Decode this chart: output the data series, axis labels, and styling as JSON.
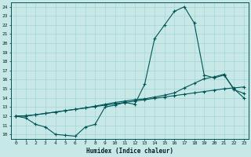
{
  "xlabel": "Humidex (Indice chaleur)",
  "xlim": [
    -0.5,
    23.5
  ],
  "ylim": [
    9.5,
    24.5
  ],
  "xticks": [
    0,
    1,
    2,
    3,
    4,
    5,
    6,
    7,
    8,
    9,
    10,
    11,
    12,
    13,
    14,
    15,
    16,
    17,
    18,
    19,
    20,
    21,
    22,
    23
  ],
  "yticks": [
    10,
    11,
    12,
    13,
    14,
    15,
    16,
    17,
    18,
    19,
    20,
    21,
    22,
    23,
    24
  ],
  "bg_color": "#c8e8e8",
  "grid_color": "#a8d8d8",
  "line_color": "#005555",
  "series1": [
    12.0,
    11.8,
    11.1,
    10.8,
    10.0,
    9.9,
    9.8,
    10.8,
    11.1,
    13.0,
    13.2,
    13.5,
    13.3,
    15.5,
    20.5,
    22.0,
    23.5,
    24.0,
    22.2,
    16.5,
    16.2,
    16.5,
    15.0,
    14.0
  ],
  "series2": [
    12.0,
    12.0,
    12.15,
    12.3,
    12.45,
    12.6,
    12.75,
    12.9,
    13.05,
    13.2,
    13.35,
    13.5,
    13.65,
    13.8,
    13.95,
    14.1,
    14.25,
    14.4,
    14.55,
    14.7,
    14.85,
    15.0,
    15.1,
    15.2
  ],
  "series3": [
    12.0,
    12.05,
    12.15,
    12.3,
    12.45,
    12.6,
    12.75,
    12.9,
    13.1,
    13.3,
    13.5,
    13.65,
    13.8,
    13.9,
    14.1,
    14.3,
    14.55,
    15.1,
    15.6,
    16.1,
    16.3,
    16.6,
    14.9,
    14.5
  ]
}
